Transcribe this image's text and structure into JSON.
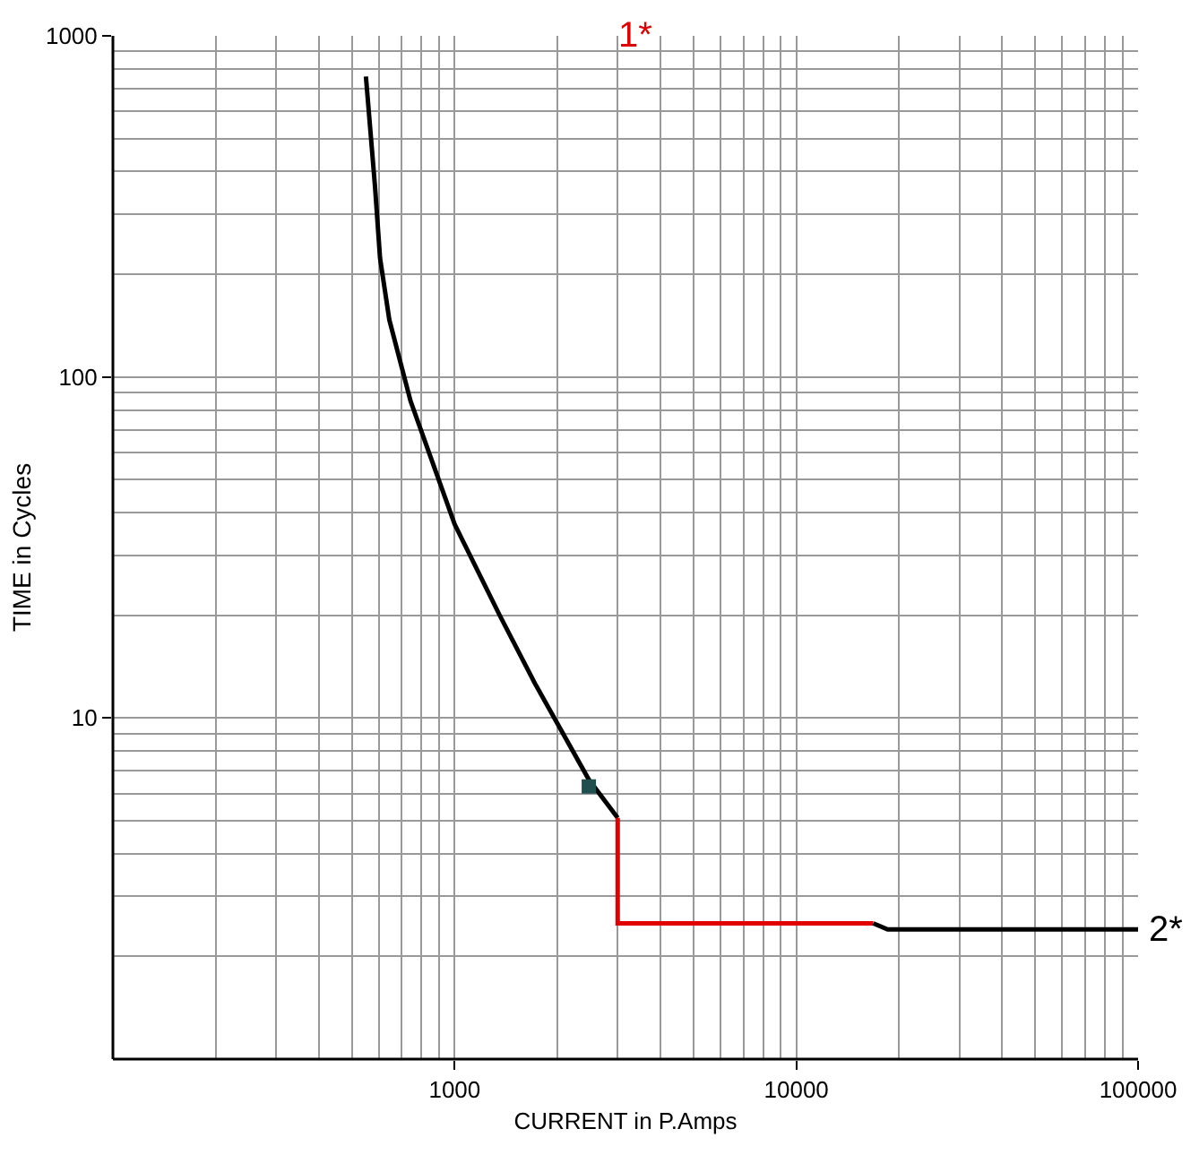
{
  "chart_data": {
    "type": "line",
    "xlabel": "CURRENT in P.Amps",
    "ylabel": "TIME in Cycles",
    "log": "xy",
    "grid": true,
    "line_style": "solid",
    "marker": "none",
    "xlim": [
      100,
      100000
    ],
    "ylim": [
      1,
      1000
    ],
    "xticks": [
      {
        "value": 100,
        "label": null
      },
      {
        "value": 200,
        "label": null
      },
      {
        "value": 300,
        "label": null
      },
      {
        "value": 400,
        "label": null
      },
      {
        "value": 500,
        "label": null
      },
      {
        "value": 600,
        "label": null
      },
      {
        "value": 700,
        "label": null
      },
      {
        "value": 800,
        "label": null
      },
      {
        "value": 900,
        "label": null
      },
      1000,
      {
        "value": 2000,
        "label": null
      },
      {
        "value": 3000,
        "label": null
      },
      {
        "value": 4000,
        "label": null
      },
      {
        "value": 5000,
        "label": null
      },
      {
        "value": 6000,
        "label": null
      },
      {
        "value": 7000,
        "label": null
      },
      {
        "value": 8000,
        "label": null
      },
      {
        "value": 9000,
        "label": null
      },
      10000,
      {
        "value": 20000,
        "label": null
      },
      {
        "value": 30000,
        "label": null
      },
      {
        "value": 40000,
        "label": null
      },
      {
        "value": 50000,
        "label": null
      },
      {
        "value": 60000,
        "label": null
      },
      {
        "value": 70000,
        "label": null
      },
      {
        "value": 80000,
        "label": null
      },
      {
        "value": 90000,
        "label": null
      },
      100000
    ],
    "yticks": [
      {
        "value": 1,
        "label": null
      },
      {
        "value": 2,
        "label": null
      },
      {
        "value": 3,
        "label": null
      },
      {
        "value": 4,
        "label": null
      },
      {
        "value": 5,
        "label": null
      },
      {
        "value": 6,
        "label": null
      },
      {
        "value": 7,
        "label": null
      },
      {
        "value": 8,
        "label": null
      },
      {
        "value": 9,
        "label": null
      },
      10,
      {
        "value": 20,
        "label": null
      },
      {
        "value": 30,
        "label": null
      },
      {
        "value": 40,
        "label": null
      },
      {
        "value": 50,
        "label": null
      },
      {
        "value": 60,
        "label": null
      },
      {
        "value": 70,
        "label": null
      },
      {
        "value": 80,
        "label": null
      },
      {
        "value": 90,
        "label": null
      },
      100,
      {
        "value": 200,
        "label": null
      },
      {
        "value": 300,
        "label": null
      },
      {
        "value": 400,
        "label": null
      },
      {
        "value": 500,
        "label": null
      },
      {
        "value": 600,
        "label": null
      },
      {
        "value": 700,
        "label": null
      },
      {
        "value": 800,
        "label": null
      },
      {
        "value": 900,
        "label": null
      },
      1000
    ],
    "series": [
      {
        "color": "#000000",
        "x": [
          550,
          585,
          605,
          644,
          743,
          1000,
          1355,
          1720,
          2470,
          3000
        ],
        "values": [
          760,
          360,
          223,
          147,
          85,
          37,
          20,
          12.6,
          6.6,
          5.1
        ]
      },
      {
        "color": "#e00000",
        "x": [
          3000,
          3000,
          16800
        ],
        "values": [
          5.1,
          2.5,
          2.5
        ]
      },
      {
        "color": "#000000",
        "x": [
          16800,
          18500,
          100000
        ],
        "values": [
          2.5,
          2.4,
          2.4
        ]
      },
      {
        "type": "scatter",
        "marker": "square",
        "color": "#1f4f4f",
        "x": [
          2470
        ],
        "values": [
          6.3
        ]
      }
    ],
    "annotations": [
      "1*",
      {
        "text": "2*",
        "x": 100000,
        "y": 2.4
      }
    ]
  }
}
